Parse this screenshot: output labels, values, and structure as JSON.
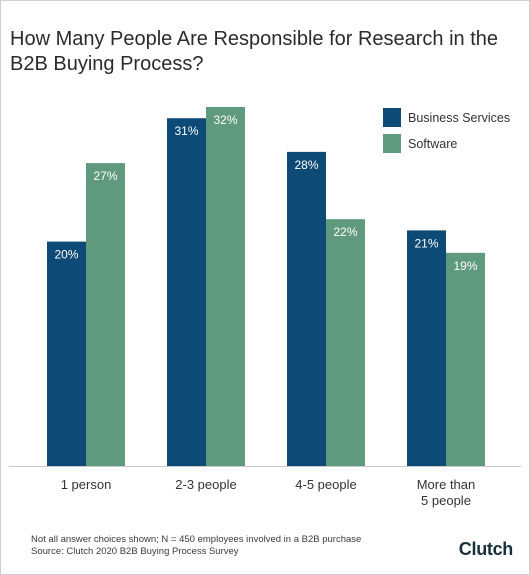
{
  "title": "How Many People Are Responsible for Research in the B2B Buying Process?",
  "footnote": {
    "line1": "Not all answer choices shown; N = 450 employees involved in a B2B purchase",
    "line2": "Source: Clutch 2020 B2B Buying Process Survey"
  },
  "brand": "Clutch",
  "colors": {
    "business": "#0d4a75",
    "software": "#5f9a7e",
    "axis": "#c8c8c8"
  },
  "chart_data": {
    "type": "bar",
    "title": "How Many People Are Responsible for Research in the B2B Buying Process?",
    "categories": [
      [
        "1 person"
      ],
      [
        "2-3 people"
      ],
      [
        "4-5 people"
      ],
      [
        "More than",
        "5 people"
      ]
    ],
    "series": [
      {
        "name": "Business Services",
        "values": [
          20,
          31,
          28,
          21
        ],
        "labels": [
          "20%",
          "31%",
          "28%",
          "21%"
        ]
      },
      {
        "name": "Software",
        "values": [
          27,
          32,
          22,
          19
        ],
        "labels": [
          "27%",
          "32%",
          "22%",
          "19%"
        ]
      }
    ],
    "unit": "%",
    "ylim": [
      0,
      32
    ],
    "legend_position": "top-right",
    "grid": false
  }
}
